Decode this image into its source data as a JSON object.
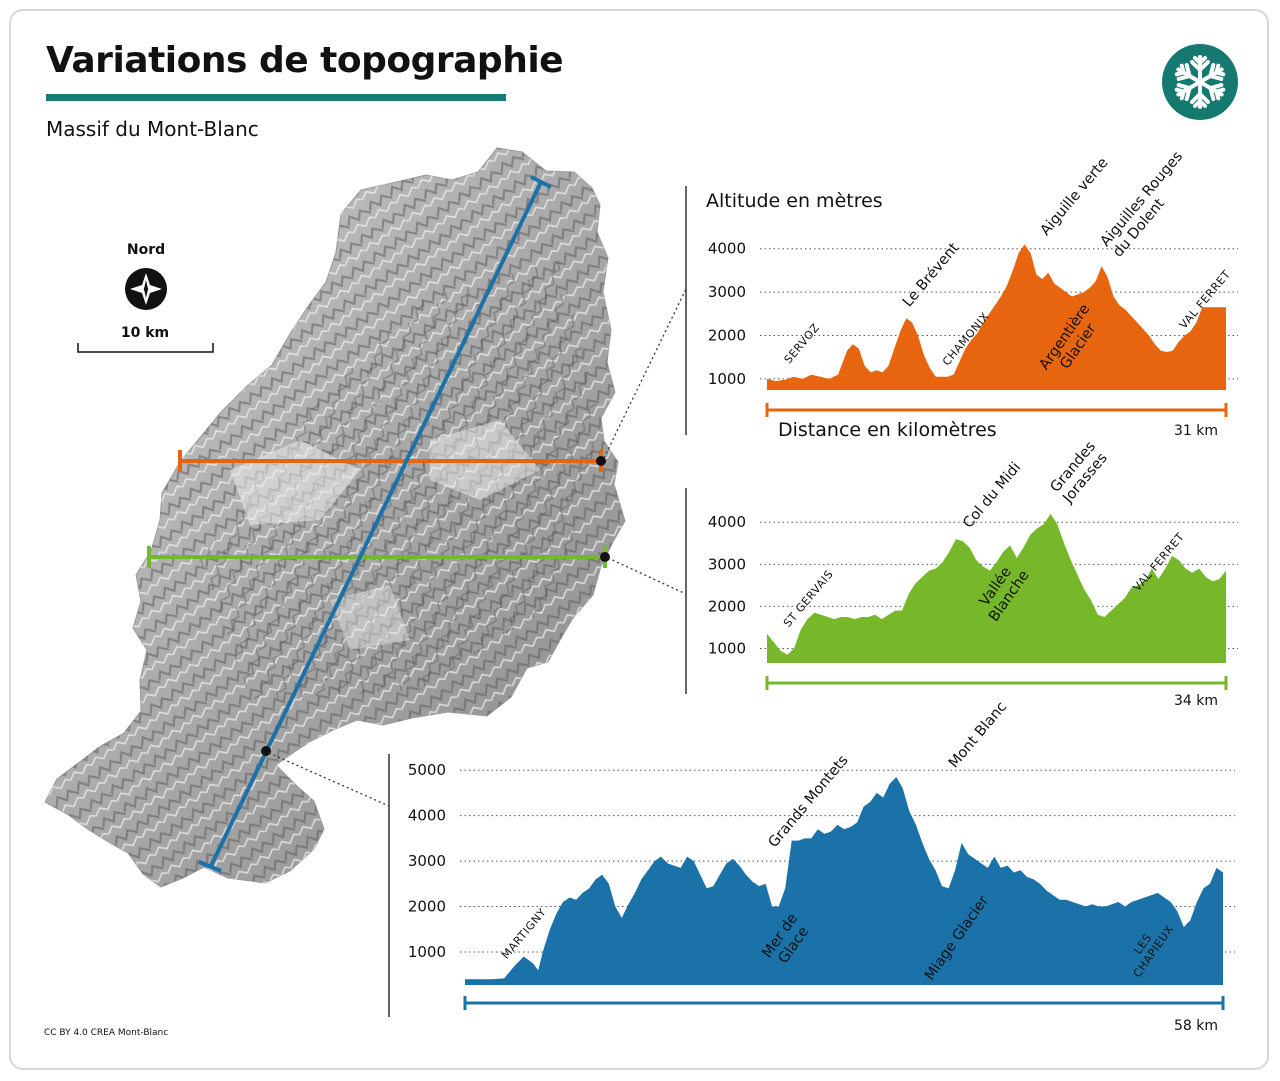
{
  "header": {
    "title": "Variations de topographie",
    "subtitle": "Massif du Mont-Blanc",
    "icon": "snowflake-icon",
    "accent_color": "#157d73"
  },
  "map": {
    "north_label": "Nord",
    "scale_label": "10 km",
    "compass_icon": "compass-rose-icon",
    "colors": {
      "orange": "#e8650f",
      "green": "#76b82a",
      "blue": "#1a72a8"
    }
  },
  "credit": "CC BY 4.0 CREA Mont-Blanc",
  "chart_data": [
    {
      "type": "area",
      "color": "#e8650f",
      "ylabel": "Altitude en mètres",
      "xlabel": "Distance en kilomètres",
      "distance_label": "31 km",
      "distance_km": 31,
      "yticks": [
        1000,
        2000,
        3000,
        4000
      ],
      "ylim": [
        800,
        4200
      ],
      "x": [
        0,
        0.6,
        1.2,
        1.8,
        2.4,
        3.0,
        3.6,
        4.2,
        4.8,
        5.4,
        5.8,
        6.2,
        6.6,
        7.0,
        7.4,
        7.8,
        8.2,
        8.6,
        9.0,
        9.4,
        9.8,
        10.2,
        10.6,
        11.0,
        11.4,
        11.8,
        12.2,
        12.6,
        13.0,
        13.4,
        13.8,
        14.2,
        14.6,
        15.0,
        15.4,
        15.8,
        16.2,
        16.6,
        17.0,
        17.4,
        17.8,
        18.2,
        18.6,
        19.0,
        19.4,
        19.8,
        20.2,
        20.6,
        21.0,
        21.4,
        21.8,
        22.2,
        22.6,
        23.0,
        23.4,
        23.8,
        24.2,
        24.6,
        25.0,
        25.4,
        25.8,
        26.2,
        26.6,
        27.0,
        27.4,
        27.8,
        28.2,
        28.6,
        29.0,
        29.4,
        29.8,
        30.2,
        30.6,
        31.0
      ],
      "y": [
        1000,
        950,
        980,
        1050,
        1000,
        1100,
        1050,
        1000,
        1100,
        1650,
        1800,
        1700,
        1300,
        1150,
        1200,
        1150,
        1300,
        1700,
        2100,
        2400,
        2300,
        2000,
        1550,
        1250,
        1050,
        1050,
        1050,
        1100,
        1400,
        1700,
        1900,
        2050,
        2300,
        2500,
        2700,
        2900,
        3150,
        3500,
        3900,
        4100,
        3900,
        3400,
        3300,
        3450,
        3200,
        3100,
        3000,
        2900,
        2950,
        3000,
        3100,
        3250,
        3600,
        3350,
        2900,
        2700,
        2600,
        2450,
        2300,
        2150,
        2000,
        1800,
        1650,
        1620,
        1650,
        1850,
        2000,
        2100,
        2300,
        2650,
        2650,
        2650,
        2650,
        2650
      ],
      "labels": [
        {
          "text": "SERVOZ",
          "x": 1.5,
          "elev": 1200,
          "style": "smallcaps"
        },
        {
          "text": "Le Brévent",
          "x": 9.6,
          "elev": 2500,
          "style": "normal"
        },
        {
          "text": "CHAMONIX",
          "x": 12.2,
          "elev": 1150,
          "style": "smallcaps"
        },
        {
          "text": "Aiguille verte",
          "x": 18.9,
          "elev": 4150,
          "style": "normal"
        },
        {
          "text": "Aiguilles Rouges\ndu Dolent",
          "x": 23.8,
          "elev": 3650,
          "style": "normal"
        },
        {
          "text": "Argentière\nGlacier",
          "x": 20.8,
          "elev": 1800,
          "style": "inside"
        },
        {
          "text": "VAL FERRET",
          "x": 28.2,
          "elev": 2000,
          "style": "smallcaps"
        }
      ]
    },
    {
      "type": "area",
      "color": "#76b82a",
      "distance_label": "34 km",
      "distance_km": 34,
      "yticks": [
        1000,
        2000,
        3000,
        4000
      ],
      "ylim": [
        800,
        4200
      ],
      "x": [
        0,
        0.5,
        1.0,
        1.5,
        2.0,
        2.5,
        3.0,
        3.5,
        4.0,
        4.5,
        5.0,
        5.5,
        6.0,
        6.5,
        7.0,
        7.5,
        8.0,
        8.5,
        9.0,
        9.5,
        10.0,
        10.5,
        11.0,
        11.5,
        12.0,
        12.5,
        13.0,
        13.5,
        14.0,
        14.5,
        15.0,
        15.5,
        16.0,
        16.5,
        17.0,
        17.5,
        18.0,
        18.5,
        19.0,
        19.5,
        20.0,
        20.5,
        21.0,
        21.5,
        22.0,
        22.5,
        23.0,
        23.5,
        24.0,
        24.5,
        25.0,
        25.5,
        26.0,
        26.5,
        27.0,
        27.5,
        28.0,
        28.5,
        29.0,
        29.5,
        30.0,
        30.5,
        31.0,
        31.5,
        32.0,
        32.5,
        33.0,
        33.5,
        34.0
      ],
      "y": [
        1350,
        1150,
        950,
        850,
        1000,
        1450,
        1700,
        1850,
        1800,
        1750,
        1700,
        1750,
        1750,
        1700,
        1750,
        1750,
        1800,
        1700,
        1800,
        1900,
        1900,
        2300,
        2550,
        2700,
        2850,
        2900,
        3050,
        3300,
        3600,
        3550,
        3400,
        3100,
        2950,
        2850,
        3050,
        3300,
        3450,
        3150,
        3400,
        3700,
        3850,
        3950,
        4200,
        3950,
        3500,
        3100,
        2750,
        2400,
        2150,
        1800,
        1750,
        1900,
        2050,
        2200,
        2450,
        2500,
        2600,
        2900,
        2650,
        2900,
        3200,
        3100,
        2900,
        2800,
        2900,
        2700,
        2600,
        2650,
        2850
      ],
      "labels": [
        {
          "text": "ST GERVAIS",
          "x": 1.6,
          "elev": 1350,
          "style": "smallcaps"
        },
        {
          "text": "Col du Midi",
          "x": 15.0,
          "elev": 3700,
          "style": "normal"
        },
        {
          "text": "Grandes\nJorasses",
          "x": 22.4,
          "elev": 4300,
          "style": "normal"
        },
        {
          "text": "Vallée\nBlanche",
          "x": 17.7,
          "elev": 2300,
          "style": "inside"
        },
        {
          "text": "VAL FERRET",
          "x": 27.5,
          "elev": 2200,
          "style": "smallcaps"
        }
      ]
    },
    {
      "type": "area",
      "color": "#1a72a8",
      "distance_label": "58 km",
      "distance_km": 58,
      "yticks": [
        1000,
        2000,
        3000,
        4000,
        5000
      ],
      "ylim": [
        300,
        5000
      ],
      "x": [
        0,
        1,
        2,
        3,
        3.8,
        4.5,
        5.2,
        5.6,
        6.0,
        6.5,
        7.0,
        7.5,
        8.0,
        8.5,
        9.0,
        9.5,
        10.0,
        10.5,
        11.0,
        11.5,
        12.0,
        12.5,
        13.0,
        13.5,
        14.0,
        14.5,
        15.0,
        15.5,
        16.0,
        16.5,
        17.0,
        17.5,
        18.0,
        18.5,
        19.0,
        19.5,
        20.0,
        20.5,
        21.0,
        21.5,
        22.0,
        22.5,
        23.0,
        23.5,
        24.0,
        24.5,
        25.0,
        25.5,
        26.0,
        26.5,
        27.0,
        27.5,
        28.0,
        28.5,
        29.0,
        29.5,
        30.0,
        30.5,
        31.0,
        31.5,
        32.0,
        32.5,
        33.0,
        33.5,
        34.0,
        34.5,
        35.0,
        35.5,
        36.0,
        36.5,
        37.0,
        37.5,
        38.0,
        38.5,
        39.0,
        39.5,
        40.0,
        40.5,
        41.0,
        41.5,
        42.0,
        42.5,
        43.0,
        43.5,
        44.0,
        44.5,
        45.0,
        45.5,
        46.0,
        46.5,
        47.0,
        47.5,
        48.0,
        48.5,
        49.0,
        49.5,
        50.0,
        50.5,
        51.0,
        51.5,
        52.0,
        52.5,
        53.0,
        53.5,
        54.0,
        54.5,
        55.0,
        55.5,
        56.0,
        56.5,
        57.0,
        57.5,
        58.0
      ],
      "y": [
        400,
        400,
        400,
        420,
        700,
        900,
        750,
        600,
        1050,
        1500,
        1850,
        2100,
        2200,
        2150,
        2300,
        2400,
        2600,
        2700,
        2500,
        2000,
        1750,
        2050,
        2300,
        2600,
        2800,
        3000,
        3100,
        2950,
        2900,
        2850,
        3100,
        3000,
        2700,
        2400,
        2450,
        2700,
        2950,
        3050,
        2900,
        2700,
        2550,
        2450,
        2500,
        2000,
        2000,
        2400,
        3450,
        3450,
        3500,
        3500,
        3700,
        3600,
        3650,
        3800,
        3700,
        3750,
        3850,
        4200,
        4300,
        4500,
        4400,
        4700,
        4850,
        4600,
        4100,
        3800,
        3400,
        3050,
        2800,
        2450,
        2400,
        2800,
        3400,
        3150,
        3050,
        2950,
        2850,
        3100,
        2850,
        2900,
        2750,
        2800,
        2650,
        2600,
        2500,
        2350,
        2250,
        2150,
        2150,
        2100,
        2050,
        2000,
        2050,
        2000,
        2000,
        2050,
        2100,
        2000,
        2100,
        2150,
        2200,
        2250,
        2300,
        2200,
        2100,
        1900,
        1550,
        1700,
        2100,
        2400,
        2500,
        2850,
        2750
      ],
      "labels": [
        {
          "text": "MARTIGNY",
          "x": 3.2,
          "elev": 700,
          "style": "smallcaps"
        },
        {
          "text": "Grands Montets",
          "x": 23.7,
          "elev": 3150,
          "style": "normal"
        },
        {
          "text": "Mont Blanc",
          "x": 37.5,
          "elev": 4900,
          "style": "normal"
        },
        {
          "text": "Mer de\nGlace",
          "x": 24.9,
          "elev": 1200,
          "style": "inside"
        },
        {
          "text": "Miage Glacier",
          "x": 37.9,
          "elev": 1250,
          "style": "inside"
        },
        {
          "text": "LES\nCHAPIEUX",
          "x": 52.5,
          "elev": 1050,
          "style": "inside-smallcaps"
        }
      ]
    }
  ]
}
